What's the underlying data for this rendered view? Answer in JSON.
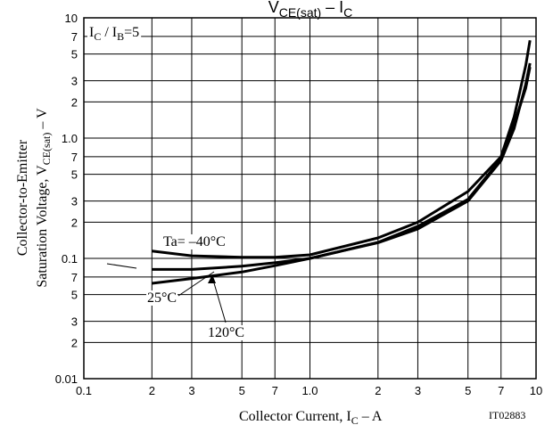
{
  "chart_data": {
    "type": "line",
    "title": [
      "V",
      "CE(sat)",
      " – I",
      "C"
    ],
    "x_label": [
      "Collector Current, I",
      "C",
      "  –  A"
    ],
    "y_label": {
      "line1": "Collector-to-Emitter",
      "line2": [
        "Saturation Voltage, V",
        "CE(sat)",
        "  –  V"
      ]
    },
    "annotation": [
      "I",
      "C",
      " / I",
      "B",
      "=5"
    ],
    "code": "IT02883",
    "x_scale": "log",
    "y_scale": "log",
    "grid": true,
    "xlim": [
      0.1,
      10
    ],
    "ylim": [
      0.01,
      10
    ],
    "xticks": [
      0.1,
      {
        "value": 0.2,
        "label": "2"
      },
      {
        "value": 0.3,
        "label": "3"
      },
      {
        "value": 0.5,
        "label": "5"
      },
      {
        "value": 0.7,
        "label": "7"
      },
      {
        "value": 1,
        "label": "1.0"
      },
      2,
      3,
      5,
      7,
      10
    ],
    "yticks": [
      0.01,
      {
        "value": 0.02,
        "label": "2"
      },
      {
        "value": 0.03,
        "label": "3"
      },
      {
        "value": 0.05,
        "label": "5"
      },
      {
        "value": 0.07,
        "label": "7"
      },
      0.1,
      {
        "value": 0.2,
        "label": "2"
      },
      {
        "value": 0.3,
        "label": "3"
      },
      {
        "value": 0.5,
        "label": "5"
      },
      {
        "value": 0.7,
        "label": "7"
      },
      {
        "value": 1,
        "label": "1.0"
      },
      2,
      3,
      5,
      7,
      10
    ],
    "series": [
      {
        "name": "Ta= –40°C",
        "color": "#000000",
        "x": [
          0.2,
          0.3,
          0.5,
          0.7,
          1,
          2,
          3,
          5,
          7,
          8,
          9,
          9.4
        ],
        "values": [
          0.115,
          0.105,
          0.102,
          0.102,
          0.107,
          0.148,
          0.2,
          0.36,
          0.7,
          1.5,
          4.0,
          6.5
        ]
      },
      {
        "name": "25°C",
        "color": "#000000",
        "x": [
          0.2,
          0.3,
          0.5,
          0.7,
          1,
          2,
          3,
          5,
          7,
          8,
          9,
          9.4
        ],
        "values": [
          0.062,
          0.068,
          0.077,
          0.087,
          0.1,
          0.136,
          0.185,
          0.31,
          0.67,
          1.3,
          2.6,
          3.9
        ]
      },
      {
        "name": "120°C",
        "color": "#000000",
        "x": [
          0.2,
          0.3,
          0.5,
          0.7,
          1,
          2,
          3,
          5,
          7,
          8,
          9,
          9.4
        ],
        "values": [
          0.081,
          0.081,
          0.086,
          0.092,
          0.1,
          0.135,
          0.176,
          0.3,
          0.65,
          1.2,
          2.8,
          4.2
        ]
      }
    ]
  }
}
